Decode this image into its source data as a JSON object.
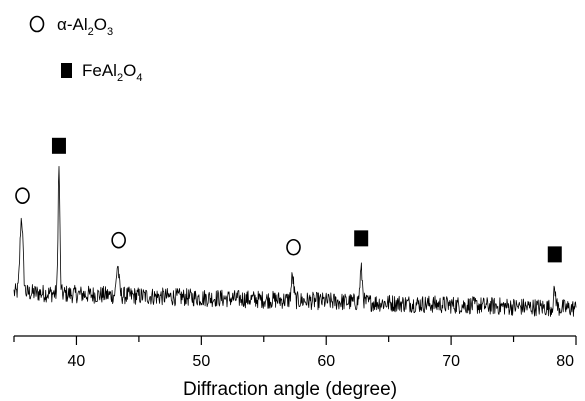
{
  "chart_data": {
    "type": "line",
    "xlabel": "Diffraction angle (degree)",
    "ylabel": "",
    "xlim": [
      35,
      80
    ],
    "ylim": [
      0,
      100
    ],
    "x_ticks": [
      40,
      50,
      60,
      70,
      80
    ],
    "grid": false,
    "y_axis_visible": false,
    "legend_position": "top-left",
    "legend": [
      {
        "marker": "open-circle",
        "label_parts": [
          {
            "t": "α-Al"
          },
          {
            "t": "2",
            "sub": true
          },
          {
            "t": "O"
          },
          {
            "t": "3",
            "sub": true
          }
        ]
      },
      {
        "marker": "filled-square",
        "label_parts": [
          {
            "t": "FeAl"
          },
          {
            "t": "2",
            "sub": true
          },
          {
            "t": "O"
          },
          {
            "t": "4",
            "sub": true
          }
        ]
      }
    ],
    "peaks": [
      {
        "x": 35.6,
        "height": 42,
        "width": 0.12,
        "phase": "open-circle"
      },
      {
        "x": 38.6,
        "height": 70,
        "width": 0.07,
        "phase": "filled-square"
      },
      {
        "x": 43.3,
        "height": 17,
        "width": 0.1,
        "phase": "open-circle"
      },
      {
        "x": 57.3,
        "height": 13,
        "width": 0.1,
        "phase": "open-circle"
      },
      {
        "x": 62.8,
        "height": 18,
        "width": 0.1,
        "phase": "filled-square"
      },
      {
        "x": 78.3,
        "height": 9,
        "width": 0.1,
        "phase": "filled-square"
      }
    ],
    "baseline": {
      "start": 20,
      "end": 11,
      "noise": 5
    },
    "line_color": "#000000"
  }
}
